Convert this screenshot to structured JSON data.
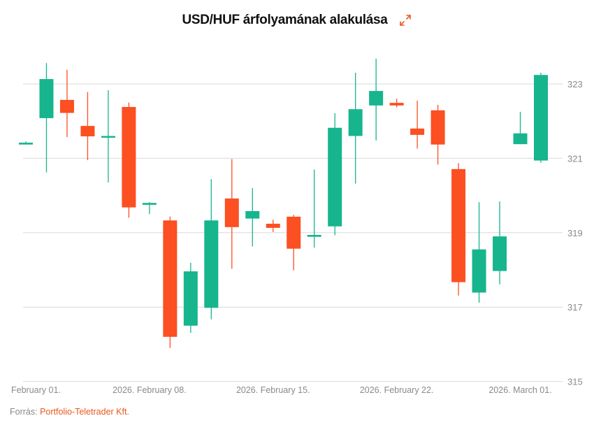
{
  "chart_data": {
    "type": "candlestick",
    "title": "USD/HUF árfolyamának alakulása",
    "xlabel": "",
    "ylabel": "",
    "ylim": [
      315,
      323.9
    ],
    "yticks": [
      "315",
      "317",
      "319",
      "321",
      "323"
    ],
    "ytick_values": [
      315,
      317,
      319,
      321,
      323
    ],
    "grid": true,
    "x_tick_labels": [
      {
        "index": 0,
        "label": "February 01."
      },
      {
        "index": 6,
        "label": "2026. February 08."
      },
      {
        "index": 12,
        "label": "2026. February 15."
      },
      {
        "index": 18,
        "label": "2026. February 22."
      },
      {
        "index": 24,
        "label": "2026. March 01."
      }
    ],
    "colors": {
      "up": "#16b58d",
      "down": "#fc4f22",
      "grid": "#d9d9d9",
      "axis_text": "#8a8a8a"
    },
    "candles": [
      {
        "date": "2026-02-01",
        "open": 321.37,
        "high": 321.45,
        "low": 321.37,
        "close": 321.42
      },
      {
        "date": "2026-02-02",
        "open": 322.08,
        "high": 323.56,
        "low": 320.62,
        "close": 323.13
      },
      {
        "date": "2026-02-03",
        "open": 322.57,
        "high": 323.38,
        "low": 321.57,
        "close": 322.22
      },
      {
        "date": "2026-02-04",
        "open": 321.87,
        "high": 322.78,
        "low": 320.95,
        "close": 321.59
      },
      {
        "date": "2026-02-05",
        "open": 321.59,
        "high": 322.83,
        "low": 320.35,
        "close": 321.6
      },
      {
        "date": "2026-02-06",
        "open": 322.38,
        "high": 322.5,
        "low": 319.4,
        "close": 319.68
      },
      {
        "date": "2026-02-08",
        "open": 319.75,
        "high": 319.82,
        "low": 319.5,
        "close": 319.8
      },
      {
        "date": "2026-02-09",
        "open": 319.33,
        "high": 319.43,
        "low": 315.9,
        "close": 316.2
      },
      {
        "date": "2026-02-10",
        "open": 316.5,
        "high": 318.19,
        "low": 316.31,
        "close": 317.96
      },
      {
        "date": "2026-02-11",
        "open": 316.98,
        "high": 320.44,
        "low": 316.67,
        "close": 319.33
      },
      {
        "date": "2026-02-12",
        "open": 319.92,
        "high": 320.98,
        "low": 318.03,
        "close": 319.15
      },
      {
        "date": "2026-02-13",
        "open": 319.38,
        "high": 320.2,
        "low": 318.63,
        "close": 319.58
      },
      {
        "date": "2026-02-15",
        "open": 319.24,
        "high": 319.35,
        "low": 319.02,
        "close": 319.13
      },
      {
        "date": "2026-02-16",
        "open": 319.43,
        "high": 319.48,
        "low": 317.99,
        "close": 318.57
      },
      {
        "date": "2026-02-17",
        "open": 318.89,
        "high": 320.7,
        "low": 318.6,
        "close": 318.94
      },
      {
        "date": "2026-02-18",
        "open": 319.17,
        "high": 322.21,
        "low": 318.93,
        "close": 321.82
      },
      {
        "date": "2026-02-19",
        "open": 321.6,
        "high": 323.3,
        "low": 320.32,
        "close": 322.32
      },
      {
        "date": "2026-02-20",
        "open": 322.42,
        "high": 323.68,
        "low": 321.48,
        "close": 322.81
      },
      {
        "date": "2026-02-22",
        "open": 322.49,
        "high": 322.6,
        "low": 322.37,
        "close": 322.42
      },
      {
        "date": "2026-02-23",
        "open": 321.8,
        "high": 322.55,
        "low": 321.26,
        "close": 321.63
      },
      {
        "date": "2026-02-24",
        "open": 322.29,
        "high": 322.44,
        "low": 320.83,
        "close": 321.37
      },
      {
        "date": "2026-02-25",
        "open": 320.71,
        "high": 320.87,
        "low": 317.31,
        "close": 317.67
      },
      {
        "date": "2026-02-26",
        "open": 317.39,
        "high": 319.82,
        "low": 317.12,
        "close": 318.55
      },
      {
        "date": "2026-02-27",
        "open": 317.97,
        "high": 319.84,
        "low": 317.61,
        "close": 318.9
      },
      {
        "date": "2026-03-01",
        "open": 321.38,
        "high": 322.25,
        "low": 321.38,
        "close": 321.67
      },
      {
        "date": "2026-03-02",
        "open": 320.94,
        "high": 323.3,
        "low": 320.88,
        "close": 323.24
      }
    ]
  },
  "footer": {
    "source_label": "Forrás:",
    "source_name": "Portfolio-Teletrader Kft."
  },
  "header": {
    "expand_icon": "expand-arrows-icon",
    "accent": "#e8581d"
  }
}
